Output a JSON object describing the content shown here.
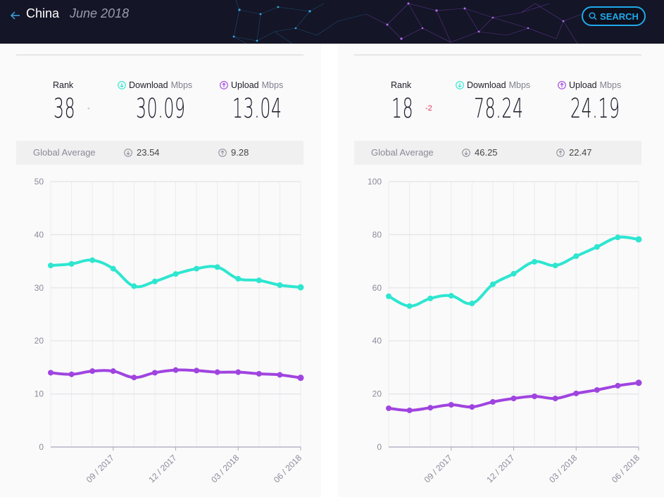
{
  "header": {
    "back_icon": "arrow-left-icon",
    "country": "China",
    "period": "June 2018",
    "search_label": "SEARCH",
    "search_icon": "search-icon"
  },
  "colors": {
    "download": "#2ee6d0",
    "upload": "#a044e0",
    "accent": "#1fa9ea",
    "rank_down": "#e8315b"
  },
  "panels": [
    {
      "id": "mobile",
      "rank_label": "Rank",
      "rank": "38",
      "rank_change": "-",
      "download_label": "Download",
      "upload_label": "Upload",
      "unit": "Mbps",
      "download": "30.09",
      "upload": "13.04",
      "global_label": "Global Average",
      "global_download": "23.54",
      "global_upload": "9.28"
    },
    {
      "id": "fixed",
      "rank_label": "Rank",
      "rank": "18",
      "rank_change": "-2",
      "download_label": "Download",
      "upload_label": "Upload",
      "unit": "Mbps",
      "download": "78.24",
      "upload": "24.19",
      "global_label": "Global Average",
      "global_download": "46.25",
      "global_upload": "22.47"
    }
  ],
  "chart_data": [
    {
      "type": "line",
      "title": "",
      "xlabel": "",
      "ylabel": "",
      "x": [
        "06/2017",
        "07/2017",
        "08/2017",
        "09/2017",
        "10/2017",
        "11/2017",
        "12/2017",
        "01/2018",
        "02/2018",
        "03/2018",
        "04/2018",
        "05/2018",
        "06/2018"
      ],
      "xticks": [
        "09 / 2017",
        "12 / 2017",
        "03 / 2018",
        "06 / 2018"
      ],
      "xtick_index": [
        3,
        6,
        9,
        12
      ],
      "yticks": [
        0,
        10,
        20,
        30,
        40,
        50
      ],
      "ylim": [
        0,
        50
      ],
      "grid": true,
      "series": [
        {
          "name": "Download",
          "values": [
            34.2,
            34.5,
            35.2,
            33.6,
            30.3,
            31.2,
            32.6,
            33.6,
            33.9,
            31.7,
            31.4,
            30.5,
            30.09
          ]
        },
        {
          "name": "Upload",
          "values": [
            14.0,
            13.7,
            14.3,
            14.3,
            13.1,
            14.0,
            14.5,
            14.4,
            14.1,
            14.1,
            13.8,
            13.6,
            13.04
          ]
        }
      ]
    },
    {
      "type": "line",
      "title": "",
      "xlabel": "",
      "ylabel": "",
      "x": [
        "06/2017",
        "07/2017",
        "08/2017",
        "09/2017",
        "10/2017",
        "11/2017",
        "12/2017",
        "01/2018",
        "02/2018",
        "03/2018",
        "04/2018",
        "05/2018",
        "06/2018"
      ],
      "xticks": [
        "09 / 2017",
        "12 / 2017",
        "03 / 2018",
        "06 / 2018"
      ],
      "xtick_index": [
        3,
        6,
        9,
        12
      ],
      "yticks": [
        0,
        20,
        40,
        60,
        80,
        100
      ],
      "ylim": [
        0,
        100
      ],
      "grid": true,
      "series": [
        {
          "name": "Download",
          "values": [
            56.8,
            53.1,
            56.0,
            57.0,
            54.1,
            61.3,
            65.3,
            69.8,
            68.4,
            71.9,
            75.4,
            79.0,
            78.24
          ]
        },
        {
          "name": "Upload",
          "values": [
            14.6,
            13.8,
            14.8,
            15.9,
            15.1,
            17.0,
            18.3,
            19.1,
            18.3,
            20.2,
            21.5,
            23.1,
            24.19
          ]
        }
      ]
    }
  ]
}
